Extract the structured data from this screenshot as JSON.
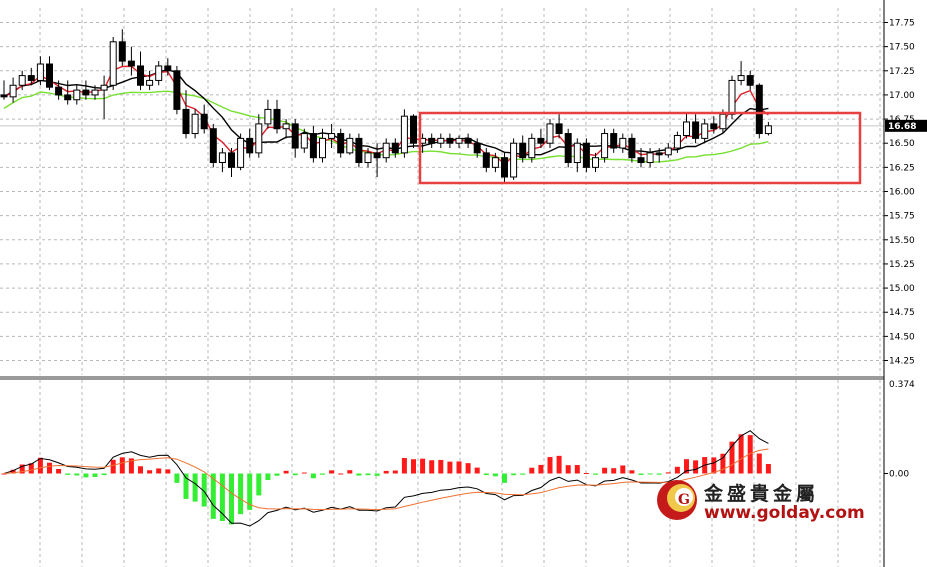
{
  "chart_data": {
    "type": "candlestick",
    "main": {
      "ylim": [
        14.1,
        17.9
      ],
      "yticks": [
        "17.75",
        "17.50",
        "17.25",
        "17.00",
        "16.75",
        "16.50",
        "16.25",
        "16.00",
        "15.75",
        "15.50",
        "15.25",
        "15.00",
        "14.75",
        "14.50",
        "14.25"
      ],
      "current_price": "16.68",
      "candles": [
        [
          17.0,
          17.15,
          16.95,
          16.98
        ],
        [
          16.98,
          17.18,
          16.92,
          17.1
        ],
        [
          17.1,
          17.25,
          17.05,
          17.2
        ],
        [
          17.2,
          17.28,
          17.1,
          17.15
        ],
        [
          17.15,
          17.4,
          17.1,
          17.32
        ],
        [
          17.32,
          17.4,
          17.05,
          17.08
        ],
        [
          17.08,
          17.15,
          16.95,
          17.0
        ],
        [
          17.0,
          17.15,
          16.9,
          16.95
        ],
        [
          16.95,
          17.1,
          16.9,
          17.05
        ],
        [
          17.05,
          17.15,
          16.95,
          17.0
        ],
        [
          17.0,
          17.1,
          16.95,
          17.05
        ],
        [
          17.05,
          17.2,
          16.75,
          17.1
        ],
        [
          17.1,
          17.6,
          17.05,
          17.55
        ],
        [
          17.55,
          17.68,
          17.3,
          17.35
        ],
        [
          17.35,
          17.5,
          17.2,
          17.3
        ],
        [
          17.3,
          17.45,
          17.05,
          17.1
        ],
        [
          17.1,
          17.25,
          17.05,
          17.15
        ],
        [
          17.15,
          17.35,
          17.1,
          17.3
        ],
        [
          17.3,
          17.38,
          17.2,
          17.25
        ],
        [
          17.25,
          17.3,
          16.8,
          16.85
        ],
        [
          16.85,
          17.05,
          16.55,
          16.6
        ],
        [
          16.6,
          16.85,
          16.55,
          16.8
        ],
        [
          16.8,
          16.9,
          16.6,
          16.65
        ],
        [
          16.65,
          16.7,
          16.25,
          16.3
        ],
        [
          16.3,
          16.45,
          16.2,
          16.4
        ],
        [
          16.4,
          16.45,
          16.15,
          16.25
        ],
        [
          16.25,
          16.6,
          16.22,
          16.55
        ],
        [
          16.55,
          16.65,
          16.35,
          16.4
        ],
        [
          16.4,
          16.8,
          16.35,
          16.7
        ],
        [
          16.7,
          16.95,
          16.65,
          16.85
        ],
        [
          16.85,
          16.95,
          16.6,
          16.65
        ],
        [
          16.65,
          16.75,
          16.55,
          16.7
        ],
        [
          16.7,
          16.75,
          16.35,
          16.45
        ],
        [
          16.45,
          16.65,
          16.4,
          16.6
        ],
        [
          16.6,
          16.68,
          16.3,
          16.35
        ],
        [
          16.35,
          16.65,
          16.3,
          16.55
        ],
        [
          16.55,
          16.7,
          16.45,
          16.6
        ],
        [
          16.6,
          16.65,
          16.35,
          16.4
        ],
        [
          16.4,
          16.6,
          16.38,
          16.55
        ],
        [
          16.55,
          16.6,
          16.25,
          16.3
        ],
        [
          16.3,
          16.45,
          16.25,
          16.4
        ],
        [
          16.4,
          16.5,
          16.15,
          16.35
        ],
        [
          16.35,
          16.55,
          16.3,
          16.5
        ],
        [
          16.5,
          16.55,
          16.35,
          16.4
        ],
        [
          16.4,
          16.85,
          16.35,
          16.78
        ],
        [
          16.78,
          16.8,
          16.45,
          16.5
        ],
        [
          16.5,
          16.6,
          16.4,
          16.55
        ],
        [
          16.55,
          16.6,
          16.45,
          16.5
        ],
        [
          16.5,
          16.6,
          16.45,
          16.55
        ],
        [
          16.55,
          16.6,
          16.45,
          16.5
        ],
        [
          16.5,
          16.58,
          16.45,
          16.55
        ],
        [
          16.55,
          16.6,
          16.45,
          16.5
        ],
        [
          16.5,
          16.55,
          16.35,
          16.4
        ],
        [
          16.4,
          16.45,
          16.2,
          16.25
        ],
        [
          16.25,
          16.4,
          16.2,
          16.35
        ],
        [
          16.35,
          16.4,
          16.08,
          16.15
        ],
        [
          16.15,
          16.55,
          16.12,
          16.5
        ],
        [
          16.5,
          16.58,
          16.3,
          16.35
        ],
        [
          16.35,
          16.6,
          16.3,
          16.55
        ],
        [
          16.55,
          16.65,
          16.45,
          16.5
        ],
        [
          16.5,
          16.75,
          16.45,
          16.7
        ],
        [
          16.7,
          16.8,
          16.55,
          16.6
        ],
        [
          16.6,
          16.65,
          16.25,
          16.3
        ],
        [
          16.3,
          16.55,
          16.2,
          16.5
        ],
        [
          16.5,
          16.55,
          16.2,
          16.25
        ],
        [
          16.25,
          16.4,
          16.2,
          16.35
        ],
        [
          16.35,
          16.65,
          16.3,
          16.6
        ],
        [
          16.6,
          16.65,
          16.4,
          16.45
        ],
        [
          16.45,
          16.6,
          16.4,
          16.55
        ],
        [
          16.55,
          16.6,
          16.3,
          16.35
        ],
        [
          16.35,
          16.45,
          16.25,
          16.3
        ],
        [
          16.3,
          16.45,
          16.25,
          16.4
        ],
        [
          16.4,
          16.45,
          16.3,
          16.38
        ],
        [
          16.38,
          16.5,
          16.35,
          16.45
        ],
        [
          16.45,
          16.62,
          16.4,
          16.58
        ],
        [
          16.58,
          16.82,
          16.55,
          16.72
        ],
        [
          16.72,
          16.8,
          16.5,
          16.55
        ],
        [
          16.55,
          16.75,
          16.5,
          16.7
        ],
        [
          16.7,
          16.78,
          16.6,
          16.65
        ],
        [
          16.65,
          16.85,
          16.6,
          16.8
        ],
        [
          16.8,
          17.2,
          16.75,
          17.15
        ],
        [
          17.15,
          17.35,
          17.1,
          17.2
        ],
        [
          17.2,
          17.25,
          17.05,
          17.1
        ],
        [
          17.1,
          17.12,
          16.55,
          16.6
        ],
        [
          16.6,
          16.72,
          16.58,
          16.68
        ]
      ]
    },
    "macd": {
      "ylim": [
        -0.55,
        0.55
      ],
      "yticks": [
        "0.374",
        "0.00"
      ]
    }
  },
  "watermark": {
    "chinese": "金盛貴金屬",
    "url": "www.golday.com"
  },
  "colors": {
    "bull": "#ffffff",
    "bear": "#000000",
    "ma_fast": "#e0202a",
    "ma_mid": "#000000",
    "ma_slow": "#77e030",
    "hist_pos": "#ff1a1a",
    "hist_neg": "#33ee33",
    "macd_line": "#000000",
    "signal_line": "#f07030",
    "highlight_box": "#e84040"
  }
}
